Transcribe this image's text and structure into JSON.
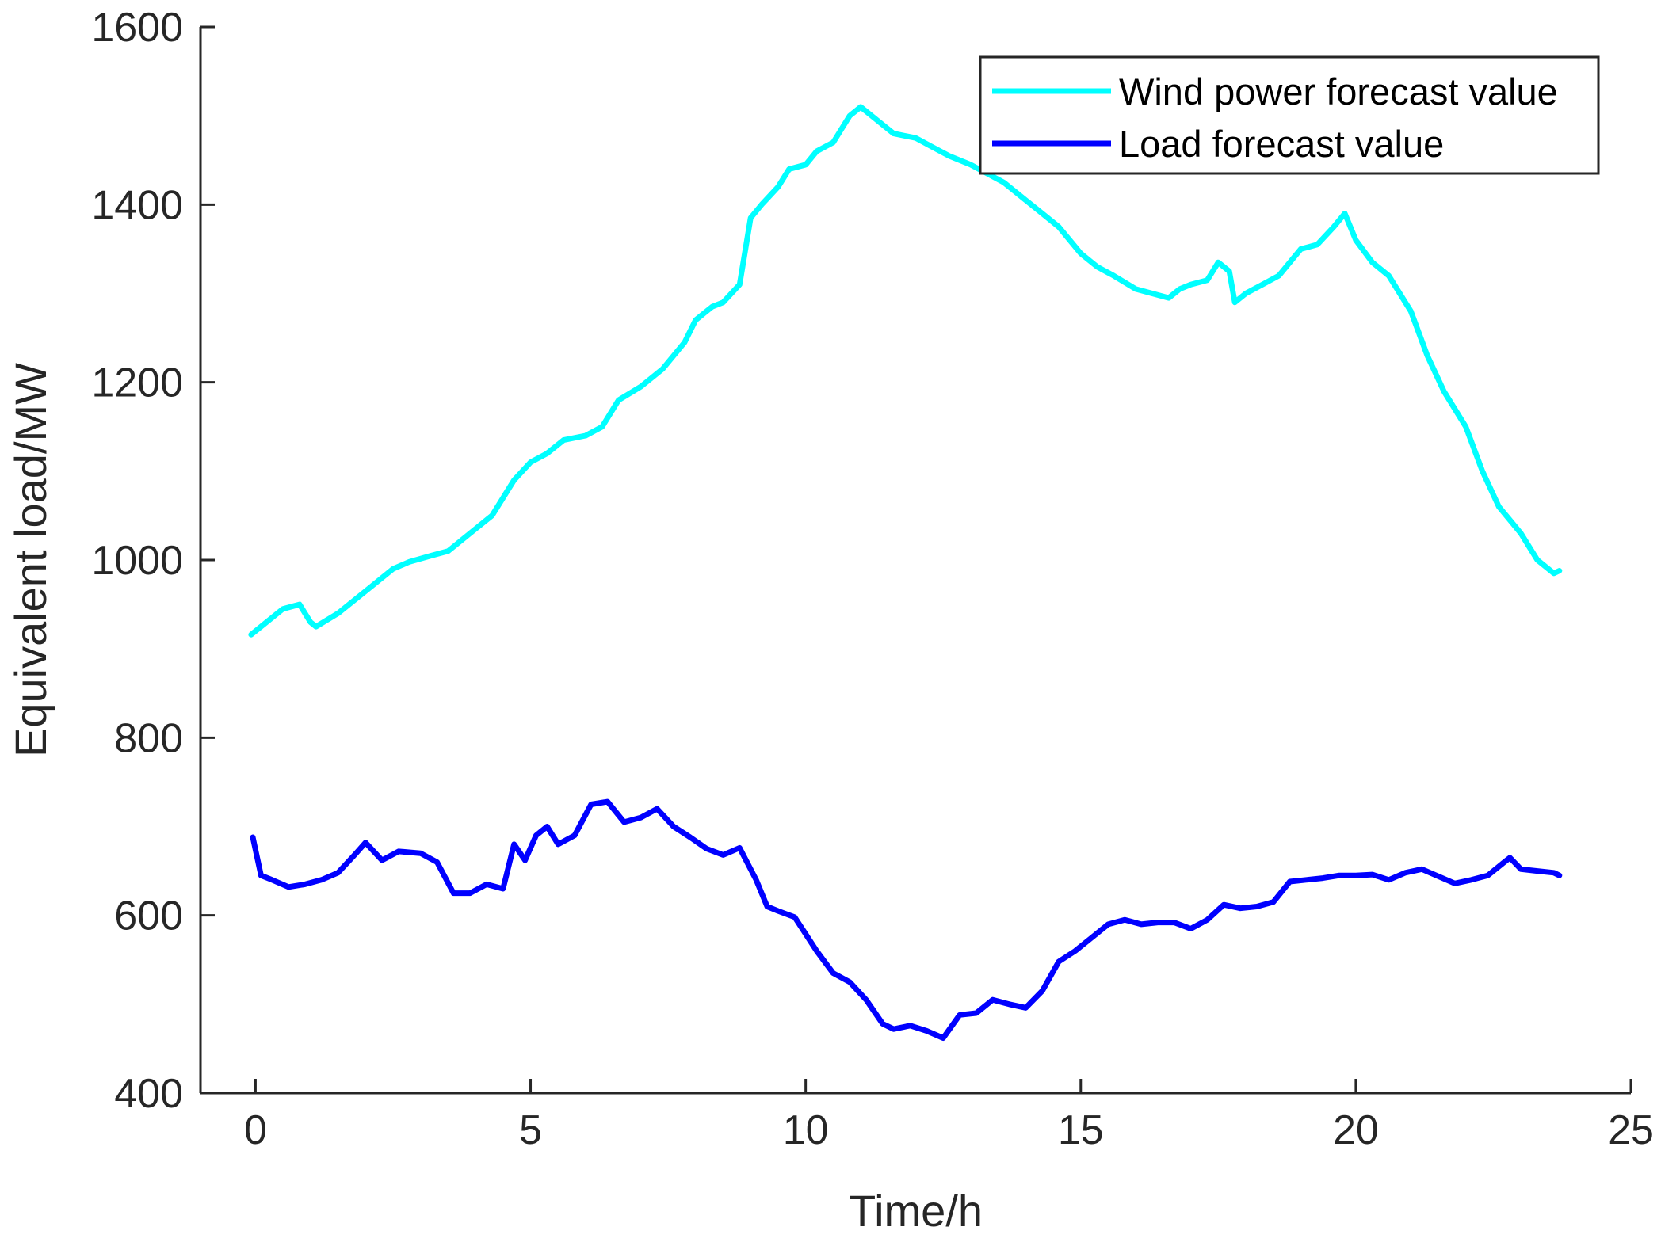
{
  "chart_data": {
    "type": "line",
    "xlabel": "Time/h",
    "ylabel": "Equivalent load/MW",
    "xlim": [
      -1,
      25
    ],
    "ylim": [
      400,
      1600
    ],
    "xticks": [
      0,
      5,
      10,
      15,
      20,
      25
    ],
    "yticks": [
      400,
      600,
      800,
      1000,
      1200,
      1400,
      1600
    ],
    "grid": false,
    "legend_position": "top-right",
    "series": [
      {
        "name": "Wind power forecast value",
        "color": "#00FFFF",
        "x": [
          -0.08,
          0.2,
          0.5,
          0.8,
          1.0,
          1.1,
          1.5,
          2.0,
          2.5,
          2.8,
          3.2,
          3.5,
          4.0,
          4.3,
          4.7,
          5.0,
          5.3,
          5.6,
          6.0,
          6.3,
          6.6,
          7.0,
          7.4,
          7.8,
          8.0,
          8.3,
          8.5,
          8.8,
          9.0,
          9.2,
          9.5,
          9.7,
          10.0,
          10.2,
          10.5,
          10.8,
          11.0,
          11.3,
          11.6,
          12.0,
          12.3,
          12.6,
          13.0,
          13.3,
          13.6,
          14.0,
          14.3,
          14.6,
          15.0,
          15.3,
          15.6,
          16.0,
          16.3,
          16.6,
          16.8,
          17.0,
          17.3,
          17.5,
          17.7,
          17.8,
          18.0,
          18.3,
          18.6,
          19.0,
          19.3,
          19.6,
          19.8,
          20.0,
          20.3,
          20.6,
          21.0,
          21.3,
          21.6,
          22.0,
          22.3,
          22.6,
          23.0,
          23.3,
          23.6,
          23.7
        ],
        "y": [
          916,
          930,
          945,
          950,
          930,
          925,
          940,
          965,
          990,
          998,
          1005,
          1010,
          1035,
          1050,
          1090,
          1110,
          1120,
          1135,
          1140,
          1150,
          1180,
          1195,
          1215,
          1245,
          1270,
          1285,
          1290,
          1310,
          1385,
          1400,
          1420,
          1440,
          1445,
          1460,
          1470,
          1500,
          1510,
          1495,
          1480,
          1475,
          1465,
          1455,
          1445,
          1435,
          1425,
          1405,
          1390,
          1375,
          1345,
          1330,
          1320,
          1305,
          1300,
          1295,
          1305,
          1310,
          1315,
          1335,
          1325,
          1290,
          1300,
          1310,
          1320,
          1350,
          1355,
          1375,
          1390,
          1360,
          1335,
          1320,
          1280,
          1230,
          1190,
          1150,
          1100,
          1060,
          1030,
          1000,
          985,
          988
        ]
      },
      {
        "name": "Load forecast value",
        "color": "#0000FF",
        "x": [
          -0.05,
          0.1,
          0.3,
          0.6,
          0.9,
          1.2,
          1.5,
          1.8,
          2.0,
          2.3,
          2.6,
          3.0,
          3.3,
          3.6,
          3.9,
          4.2,
          4.5,
          4.7,
          4.9,
          5.1,
          5.3,
          5.5,
          5.8,
          6.1,
          6.4,
          6.7,
          7.0,
          7.3,
          7.6,
          7.9,
          8.2,
          8.5,
          8.8,
          9.1,
          9.3,
          9.5,
          9.8,
          10.2,
          10.5,
          10.8,
          11.1,
          11.4,
          11.6,
          11.9,
          12.2,
          12.5,
          12.8,
          13.1,
          13.4,
          13.7,
          14.0,
          14.3,
          14.6,
          14.9,
          15.2,
          15.5,
          15.8,
          16.1,
          16.4,
          16.7,
          17.0,
          17.3,
          17.6,
          17.9,
          18.2,
          18.5,
          18.8,
          19.1,
          19.4,
          19.7,
          20.0,
          20.3,
          20.6,
          20.9,
          21.2,
          21.5,
          21.8,
          22.1,
          22.4,
          22.7,
          22.8,
          23.0,
          23.3,
          23.6,
          23.7
        ],
        "y": [
          688,
          645,
          640,
          632,
          635,
          640,
          648,
          668,
          682,
          662,
          672,
          670,
          660,
          625,
          625,
          635,
          630,
          680,
          662,
          690,
          700,
          680,
          690,
          725,
          728,
          705,
          710,
          720,
          700,
          688,
          675,
          668,
          676,
          640,
          610,
          605,
          598,
          560,
          535,
          525,
          505,
          478,
          472,
          476,
          470,
          462,
          488,
          490,
          505,
          500,
          496,
          515,
          548,
          560,
          575,
          590,
          595,
          590,
          592,
          592,
          585,
          595,
          612,
          608,
          610,
          615,
          638,
          640,
          642,
          645,
          645,
          646,
          640,
          648,
          652,
          644,
          636,
          640,
          645,
          660,
          665,
          652,
          650,
          648,
          645
        ]
      }
    ],
    "legend": [
      "Wind power forecast value",
      "Load forecast value"
    ]
  }
}
